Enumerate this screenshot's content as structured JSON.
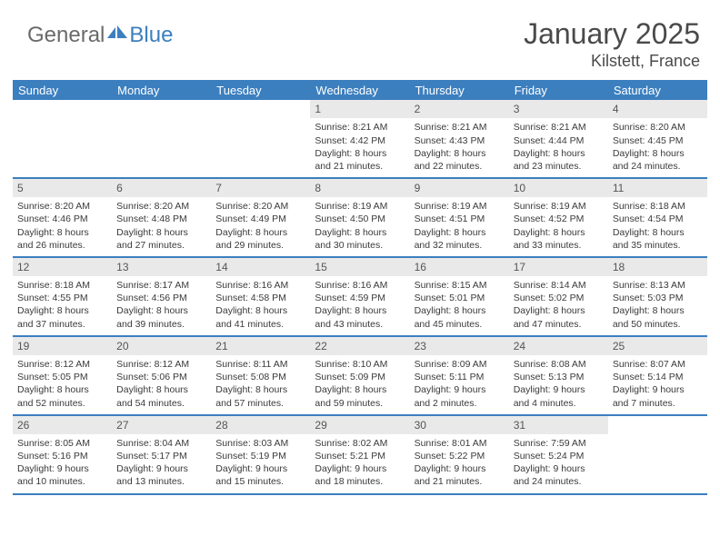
{
  "brand": {
    "general": "General",
    "blue": "Blue",
    "icon_color": "#3c7fbf"
  },
  "header": {
    "title": "January 2025",
    "location": "Kilstett, France"
  },
  "colors": {
    "header_bar": "#3c7fbf",
    "daynum_bg": "#e9e9e9",
    "text": "#3a3a3a",
    "title_text": "#4a4a4a",
    "logo_gray": "#6a6a6a"
  },
  "day_headers": [
    "Sunday",
    "Monday",
    "Tuesday",
    "Wednesday",
    "Thursday",
    "Friday",
    "Saturday"
  ],
  "weeks": [
    [
      {
        "n": "",
        "sunrise": "",
        "sunset": "",
        "daylight1": "",
        "daylight2": ""
      },
      {
        "n": "",
        "sunrise": "",
        "sunset": "",
        "daylight1": "",
        "daylight2": ""
      },
      {
        "n": "",
        "sunrise": "",
        "sunset": "",
        "daylight1": "",
        "daylight2": ""
      },
      {
        "n": "1",
        "sunrise": "Sunrise: 8:21 AM",
        "sunset": "Sunset: 4:42 PM",
        "daylight1": "Daylight: 8 hours",
        "daylight2": "and 21 minutes."
      },
      {
        "n": "2",
        "sunrise": "Sunrise: 8:21 AM",
        "sunset": "Sunset: 4:43 PM",
        "daylight1": "Daylight: 8 hours",
        "daylight2": "and 22 minutes."
      },
      {
        "n": "3",
        "sunrise": "Sunrise: 8:21 AM",
        "sunset": "Sunset: 4:44 PM",
        "daylight1": "Daylight: 8 hours",
        "daylight2": "and 23 minutes."
      },
      {
        "n": "4",
        "sunrise": "Sunrise: 8:20 AM",
        "sunset": "Sunset: 4:45 PM",
        "daylight1": "Daylight: 8 hours",
        "daylight2": "and 24 minutes."
      }
    ],
    [
      {
        "n": "5",
        "sunrise": "Sunrise: 8:20 AM",
        "sunset": "Sunset: 4:46 PM",
        "daylight1": "Daylight: 8 hours",
        "daylight2": "and 26 minutes."
      },
      {
        "n": "6",
        "sunrise": "Sunrise: 8:20 AM",
        "sunset": "Sunset: 4:48 PM",
        "daylight1": "Daylight: 8 hours",
        "daylight2": "and 27 minutes."
      },
      {
        "n": "7",
        "sunrise": "Sunrise: 8:20 AM",
        "sunset": "Sunset: 4:49 PM",
        "daylight1": "Daylight: 8 hours",
        "daylight2": "and 29 minutes."
      },
      {
        "n": "8",
        "sunrise": "Sunrise: 8:19 AM",
        "sunset": "Sunset: 4:50 PM",
        "daylight1": "Daylight: 8 hours",
        "daylight2": "and 30 minutes."
      },
      {
        "n": "9",
        "sunrise": "Sunrise: 8:19 AM",
        "sunset": "Sunset: 4:51 PM",
        "daylight1": "Daylight: 8 hours",
        "daylight2": "and 32 minutes."
      },
      {
        "n": "10",
        "sunrise": "Sunrise: 8:19 AM",
        "sunset": "Sunset: 4:52 PM",
        "daylight1": "Daylight: 8 hours",
        "daylight2": "and 33 minutes."
      },
      {
        "n": "11",
        "sunrise": "Sunrise: 8:18 AM",
        "sunset": "Sunset: 4:54 PM",
        "daylight1": "Daylight: 8 hours",
        "daylight2": "and 35 minutes."
      }
    ],
    [
      {
        "n": "12",
        "sunrise": "Sunrise: 8:18 AM",
        "sunset": "Sunset: 4:55 PM",
        "daylight1": "Daylight: 8 hours",
        "daylight2": "and 37 minutes."
      },
      {
        "n": "13",
        "sunrise": "Sunrise: 8:17 AM",
        "sunset": "Sunset: 4:56 PM",
        "daylight1": "Daylight: 8 hours",
        "daylight2": "and 39 minutes."
      },
      {
        "n": "14",
        "sunrise": "Sunrise: 8:16 AM",
        "sunset": "Sunset: 4:58 PM",
        "daylight1": "Daylight: 8 hours",
        "daylight2": "and 41 minutes."
      },
      {
        "n": "15",
        "sunrise": "Sunrise: 8:16 AM",
        "sunset": "Sunset: 4:59 PM",
        "daylight1": "Daylight: 8 hours",
        "daylight2": "and 43 minutes."
      },
      {
        "n": "16",
        "sunrise": "Sunrise: 8:15 AM",
        "sunset": "Sunset: 5:01 PM",
        "daylight1": "Daylight: 8 hours",
        "daylight2": "and 45 minutes."
      },
      {
        "n": "17",
        "sunrise": "Sunrise: 8:14 AM",
        "sunset": "Sunset: 5:02 PM",
        "daylight1": "Daylight: 8 hours",
        "daylight2": "and 47 minutes."
      },
      {
        "n": "18",
        "sunrise": "Sunrise: 8:13 AM",
        "sunset": "Sunset: 5:03 PM",
        "daylight1": "Daylight: 8 hours",
        "daylight2": "and 50 minutes."
      }
    ],
    [
      {
        "n": "19",
        "sunrise": "Sunrise: 8:12 AM",
        "sunset": "Sunset: 5:05 PM",
        "daylight1": "Daylight: 8 hours",
        "daylight2": "and 52 minutes."
      },
      {
        "n": "20",
        "sunrise": "Sunrise: 8:12 AM",
        "sunset": "Sunset: 5:06 PM",
        "daylight1": "Daylight: 8 hours",
        "daylight2": "and 54 minutes."
      },
      {
        "n": "21",
        "sunrise": "Sunrise: 8:11 AM",
        "sunset": "Sunset: 5:08 PM",
        "daylight1": "Daylight: 8 hours",
        "daylight2": "and 57 minutes."
      },
      {
        "n": "22",
        "sunrise": "Sunrise: 8:10 AM",
        "sunset": "Sunset: 5:09 PM",
        "daylight1": "Daylight: 8 hours",
        "daylight2": "and 59 minutes."
      },
      {
        "n": "23",
        "sunrise": "Sunrise: 8:09 AM",
        "sunset": "Sunset: 5:11 PM",
        "daylight1": "Daylight: 9 hours",
        "daylight2": "and 2 minutes."
      },
      {
        "n": "24",
        "sunrise": "Sunrise: 8:08 AM",
        "sunset": "Sunset: 5:13 PM",
        "daylight1": "Daylight: 9 hours",
        "daylight2": "and 4 minutes."
      },
      {
        "n": "25",
        "sunrise": "Sunrise: 8:07 AM",
        "sunset": "Sunset: 5:14 PM",
        "daylight1": "Daylight: 9 hours",
        "daylight2": "and 7 minutes."
      }
    ],
    [
      {
        "n": "26",
        "sunrise": "Sunrise: 8:05 AM",
        "sunset": "Sunset: 5:16 PM",
        "daylight1": "Daylight: 9 hours",
        "daylight2": "and 10 minutes."
      },
      {
        "n": "27",
        "sunrise": "Sunrise: 8:04 AM",
        "sunset": "Sunset: 5:17 PM",
        "daylight1": "Daylight: 9 hours",
        "daylight2": "and 13 minutes."
      },
      {
        "n": "28",
        "sunrise": "Sunrise: 8:03 AM",
        "sunset": "Sunset: 5:19 PM",
        "daylight1": "Daylight: 9 hours",
        "daylight2": "and 15 minutes."
      },
      {
        "n": "29",
        "sunrise": "Sunrise: 8:02 AM",
        "sunset": "Sunset: 5:21 PM",
        "daylight1": "Daylight: 9 hours",
        "daylight2": "and 18 minutes."
      },
      {
        "n": "30",
        "sunrise": "Sunrise: 8:01 AM",
        "sunset": "Sunset: 5:22 PM",
        "daylight1": "Daylight: 9 hours",
        "daylight2": "and 21 minutes."
      },
      {
        "n": "31",
        "sunrise": "Sunrise: 7:59 AM",
        "sunset": "Sunset: 5:24 PM",
        "daylight1": "Daylight: 9 hours",
        "daylight2": "and 24 minutes."
      },
      {
        "n": "",
        "sunrise": "",
        "sunset": "",
        "daylight1": "",
        "daylight2": ""
      }
    ]
  ]
}
